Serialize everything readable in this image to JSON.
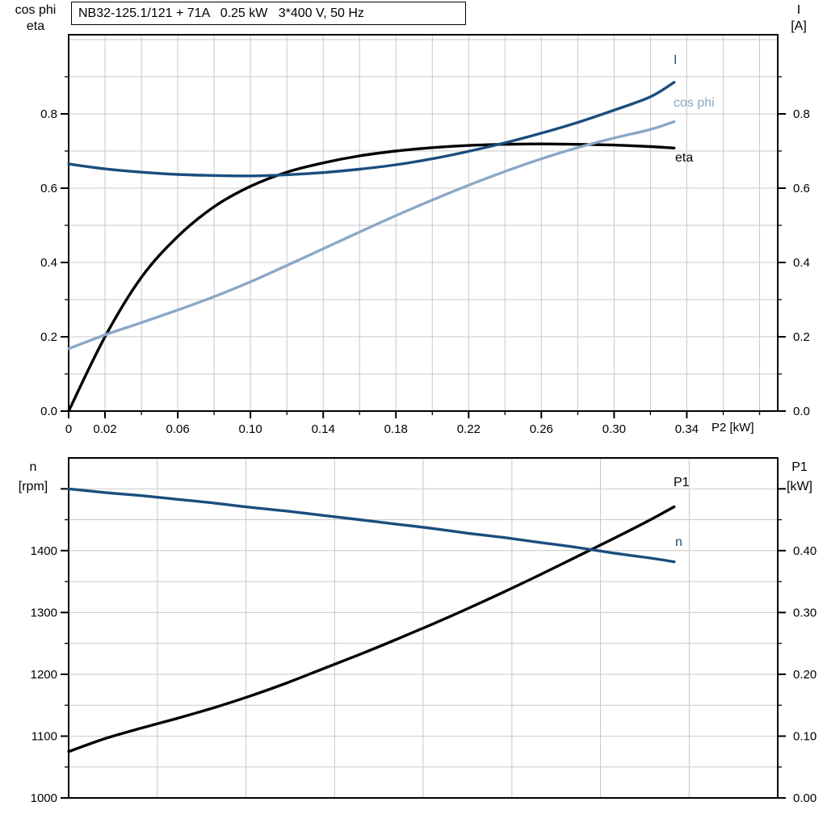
{
  "header": {
    "title": "NB32-125.1/121 + 71A   0.25 kW   3*400 V, 50 Hz"
  },
  "colors": {
    "dark_blue": "#1b4d7e",
    "light_blue": "#8aa8c7",
    "black": "#000000",
    "grid": "#c9c9c9",
    "border": "#000000"
  },
  "chart_data": [
    {
      "type": "line",
      "title": "Motor electrical curves vs shaft power",
      "x_axis": {
        "min": 0,
        "max": 0.39,
        "grid_step": 0.02,
        "title": "P2 [kW]",
        "major_ticks": [
          0,
          0.02,
          0.06,
          0.1,
          0.14,
          0.18,
          0.22,
          0.26,
          0.3,
          0.34
        ],
        "major_labels": [
          "0",
          "0.02",
          "0.06",
          "0.10",
          "0.14",
          "0.18",
          "0.22",
          "0.26",
          "0.30",
          "0.34"
        ],
        "minor_ticks": [
          0.04,
          0.08,
          0.12,
          0.16,
          0.2,
          0.24,
          0.28,
          0.32,
          0.36,
          0.38
        ]
      },
      "y_left": {
        "min": 0,
        "max": 1.013,
        "grid_step": 0.1,
        "title_lines": [
          "cos phi",
          "eta"
        ],
        "major_ticks": [
          0,
          0.2,
          0.4,
          0.6,
          0.8
        ],
        "major_labels": [
          "0.0",
          "0.2",
          "0.4",
          "0.6",
          "0.8"
        ],
        "minor_ticks": [
          0.1,
          0.3,
          0.5,
          0.7,
          0.9
        ]
      },
      "y_right": {
        "min": 0,
        "max": 1.013,
        "title_lines": [
          "I",
          "[A]"
        ],
        "major_ticks": [
          0,
          0.2,
          0.4,
          0.6,
          0.8
        ],
        "major_labels": [
          "0.0",
          "0.2",
          "0.4",
          "0.6",
          "0.8"
        ],
        "minor_ticks": [
          0.1,
          0.3,
          0.5,
          0.7,
          0.9
        ]
      },
      "x": [
        0,
        0.02,
        0.04,
        0.06,
        0.08,
        0.1,
        0.12,
        0.14,
        0.16,
        0.18,
        0.2,
        0.22,
        0.24,
        0.26,
        0.28,
        0.3,
        0.32,
        0.333
      ],
      "series": [
        {
          "name": "eta",
          "label": "eta",
          "axis": "left",
          "color": "#000000",
          "values": [
            0,
            0.2,
            0.36,
            0.47,
            0.55,
            0.605,
            0.643,
            0.668,
            0.687,
            0.7,
            0.709,
            0.715,
            0.718,
            0.719,
            0.718,
            0.716,
            0.712,
            0.708
          ]
        },
        {
          "name": "cos phi",
          "label": "cos phi",
          "axis": "left",
          "color": "#8aa8c7",
          "values": [
            0.168,
            0.205,
            0.238,
            0.272,
            0.308,
            0.348,
            0.392,
            0.437,
            0.482,
            0.526,
            0.568,
            0.608,
            0.645,
            0.679,
            0.709,
            0.735,
            0.758,
            0.779
          ]
        },
        {
          "name": "I",
          "label": "I",
          "axis": "left",
          "color": "#1b4d7e",
          "values": [
            0.665,
            0.652,
            0.643,
            0.637,
            0.634,
            0.633,
            0.636,
            0.642,
            0.651,
            0.663,
            0.679,
            0.699,
            0.722,
            0.748,
            0.777,
            0.81,
            0.846,
            0.885
          ]
        }
      ],
      "legend_position": "right-of-curves",
      "grid": true
    },
    {
      "type": "line",
      "title": "Speed and input power vs shaft power",
      "x_axis": {
        "min": 0,
        "max": 0.39,
        "grid_divisions": 8,
        "title": "",
        "major_ticks": [],
        "major_labels": [],
        "minor_ticks": []
      },
      "y_left": {
        "min": 1000,
        "max": 1550,
        "grid_step": 50,
        "title_lines": [
          "n",
          "[rpm]"
        ],
        "major_ticks": [
          1000,
          1100,
          1200,
          1300,
          1400,
          1500
        ],
        "major_labels": [
          "1000",
          "1100",
          "1200",
          "1300",
          "1400",
          ""
        ],
        "minor_ticks": [
          1050,
          1150,
          1250,
          1350,
          1450
        ]
      },
      "y_right": {
        "min": 0,
        "max": 0.55,
        "title_lines": [
          "P1",
          "[kW]"
        ],
        "major_ticks": [
          0,
          0.1,
          0.2,
          0.3,
          0.4,
          0.5
        ],
        "major_labels": [
          "0.00",
          "0.10",
          "0.20",
          "0.30",
          "0.40",
          ""
        ],
        "minor_ticks": [
          0.05,
          0.15,
          0.25,
          0.35,
          0.45
        ]
      },
      "x": [
        0,
        0.02,
        0.04,
        0.06,
        0.08,
        0.1,
        0.12,
        0.14,
        0.16,
        0.18,
        0.2,
        0.22,
        0.24,
        0.26,
        0.28,
        0.3,
        0.32,
        0.333
      ],
      "series": [
        {
          "name": "P1",
          "label": "P1",
          "axis": "right",
          "color": "#000000",
          "values": [
            0.075,
            0.096,
            0.113,
            0.129,
            0.146,
            0.165,
            0.186,
            0.209,
            0.232,
            0.256,
            0.281,
            0.307,
            0.334,
            0.362,
            0.391,
            0.42,
            0.45,
            0.471
          ]
        },
        {
          "name": "n",
          "label": "n",
          "axis": "left",
          "color": "#1b4d7e",
          "values": [
            1500,
            1494,
            1489,
            1483,
            1477,
            1470,
            1464,
            1457,
            1450,
            1443,
            1436,
            1428,
            1421,
            1413,
            1405,
            1396,
            1388,
            1382
          ]
        }
      ],
      "legend_position": "right-of-curves",
      "grid": true
    }
  ]
}
